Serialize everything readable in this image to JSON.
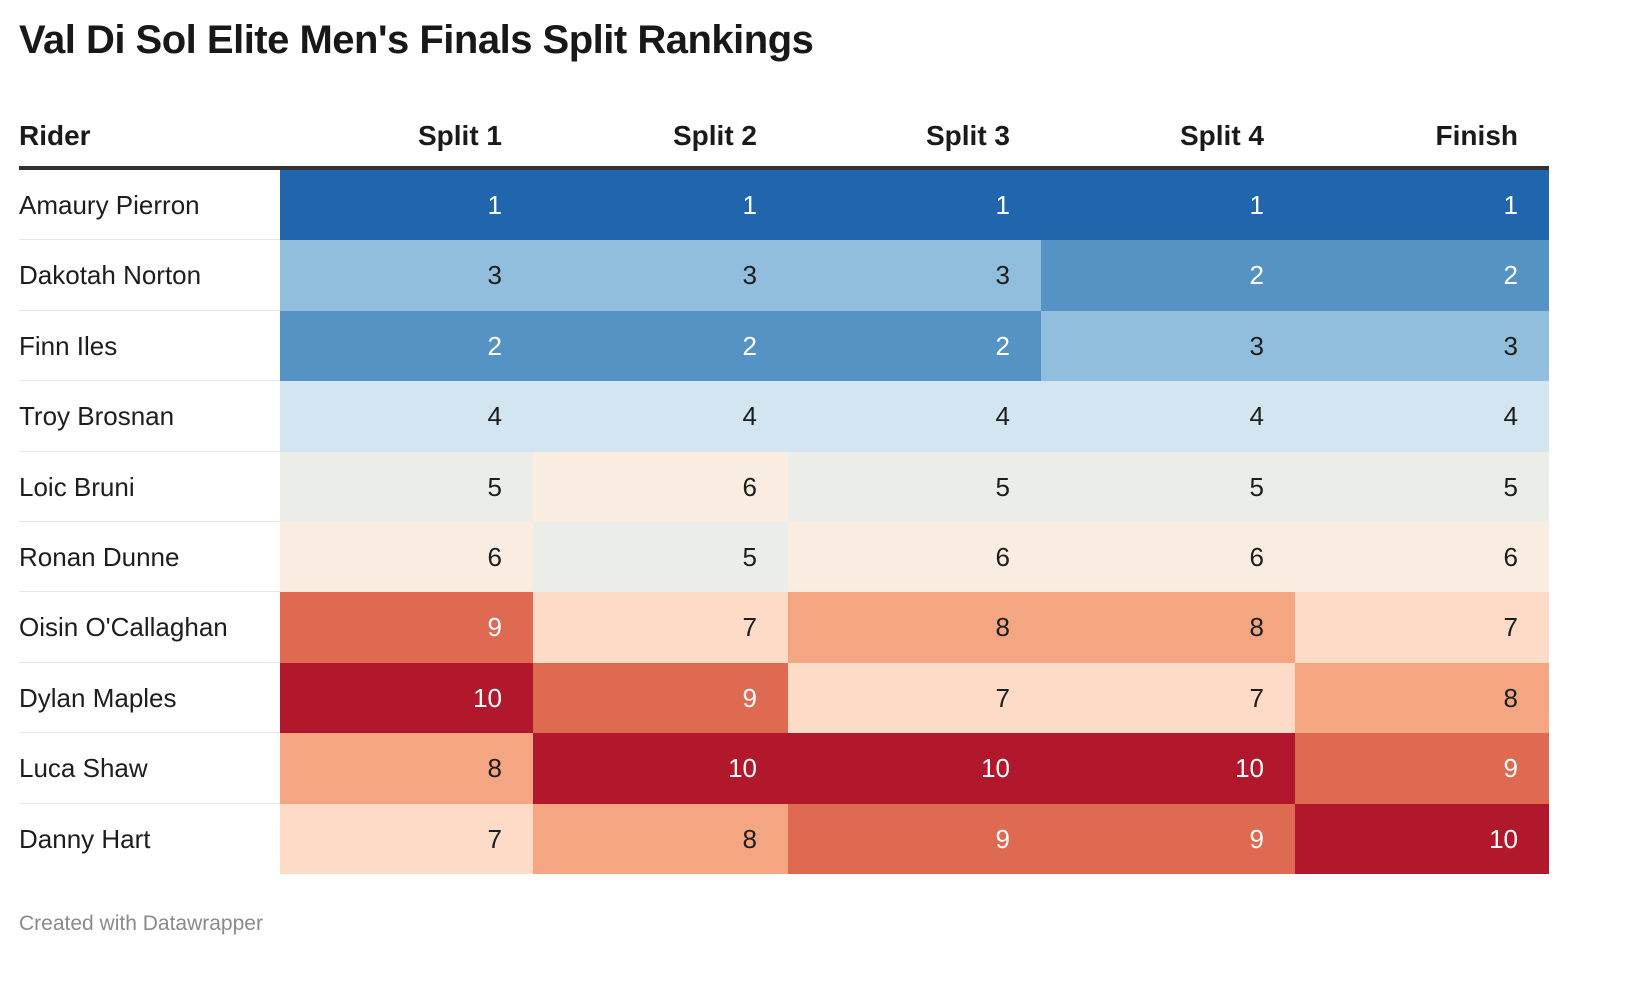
{
  "chart_data": {
    "type": "table",
    "title": "Val Di Sol Elite Men's Finals Split Rankings",
    "columns": [
      "Rider",
      "Split 1",
      "Split 2",
      "Split 3",
      "Split 4",
      "Finish"
    ],
    "rows": [
      {
        "rider": "Amaury Pierron",
        "values": [
          1,
          1,
          1,
          1,
          1
        ]
      },
      {
        "rider": "Dakotah Norton",
        "values": [
          3,
          3,
          3,
          2,
          2
        ]
      },
      {
        "rider": "Finn Iles",
        "values": [
          2,
          2,
          2,
          3,
          3
        ]
      },
      {
        "rider": "Troy Brosnan",
        "values": [
          4,
          4,
          4,
          4,
          4
        ]
      },
      {
        "rider": "Loic Bruni",
        "values": [
          5,
          6,
          5,
          5,
          5
        ]
      },
      {
        "rider": "Ronan Dunne",
        "values": [
          6,
          5,
          6,
          6,
          6
        ]
      },
      {
        "rider": "Oisin O'Callaghan",
        "values": [
          9,
          7,
          8,
          8,
          7
        ]
      },
      {
        "rider": "Dylan Maples",
        "values": [
          10,
          9,
          7,
          7,
          8
        ]
      },
      {
        "rider": "Luca Shaw",
        "values": [
          8,
          10,
          10,
          10,
          9
        ]
      },
      {
        "rider": "Danny Hart",
        "values": [
          7,
          8,
          9,
          9,
          10
        ]
      }
    ],
    "color_scale": {
      "1": "#2166ac",
      "2": "#5593c5",
      "3": "#90bedc",
      "4": "#d2e5f0",
      "5": "#ebeee8",
      "6": "#f9ece0",
      "7": "#fddbc7",
      "8": "#f4a582",
      "9": "#dd6a51",
      "10": "#b2182b"
    },
    "light_text_values": [
      1,
      2,
      9,
      10
    ],
    "footer": "Created with Datawrapper"
  }
}
